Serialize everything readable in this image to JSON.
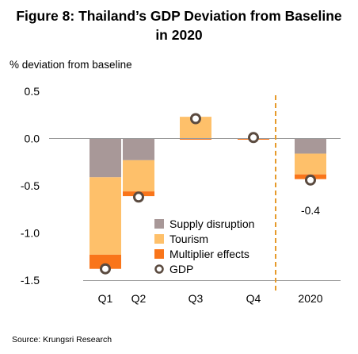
{
  "figure": {
    "title_line1": "Figure 8: Thailand’s GDP Deviation from Baseline",
    "title_line2": "in 2020",
    "source": "Source: Krungsri Research"
  },
  "chart_data": {
    "type": "bar",
    "stacked": true,
    "title": "Figure 8: Thailand’s GDP Deviation from Baseline in 2020",
    "ylabel": "% deviation from baseline",
    "xlabel": "",
    "categories": [
      "Q1",
      "Q2",
      "Q3",
      "Q4",
      "2020"
    ],
    "ylim": [
      -1.5,
      0.5
    ],
    "yticks": [
      0.5,
      0.0,
      -0.5,
      -1.0,
      -1.5
    ],
    "ytick_labels": [
      "0.5",
      "0.0",
      "-0.5",
      "-1.0",
      "-1.5"
    ],
    "grid": false,
    "legend_position": "bottom-center",
    "series": [
      {
        "name": "Supply disruption",
        "kind": "bar",
        "color": "#a89898",
        "values": [
          -0.41,
          -0.23,
          0.0,
          0.0,
          -0.16
        ]
      },
      {
        "name": "Tourism",
        "kind": "bar",
        "color": "#fec06a",
        "values": [
          -0.82,
          -0.33,
          0.23,
          0.0,
          -0.22
        ]
      },
      {
        "name": "Multiplier effects",
        "kind": "bar",
        "color": "#f9751a",
        "values": [
          -0.15,
          -0.05,
          -0.01,
          -0.01,
          -0.05
        ]
      },
      {
        "name": "GDP",
        "kind": "marker",
        "color": "#5a4a3f",
        "values": [
          -1.38,
          -0.62,
          0.21,
          0.01,
          -0.44
        ]
      }
    ],
    "annotations": [
      {
        "category": "2020",
        "text": "-0.4"
      }
    ],
    "separator": {
      "style": "dashed",
      "color": "#e69a2a",
      "between": [
        "Q4",
        "2020"
      ]
    }
  }
}
